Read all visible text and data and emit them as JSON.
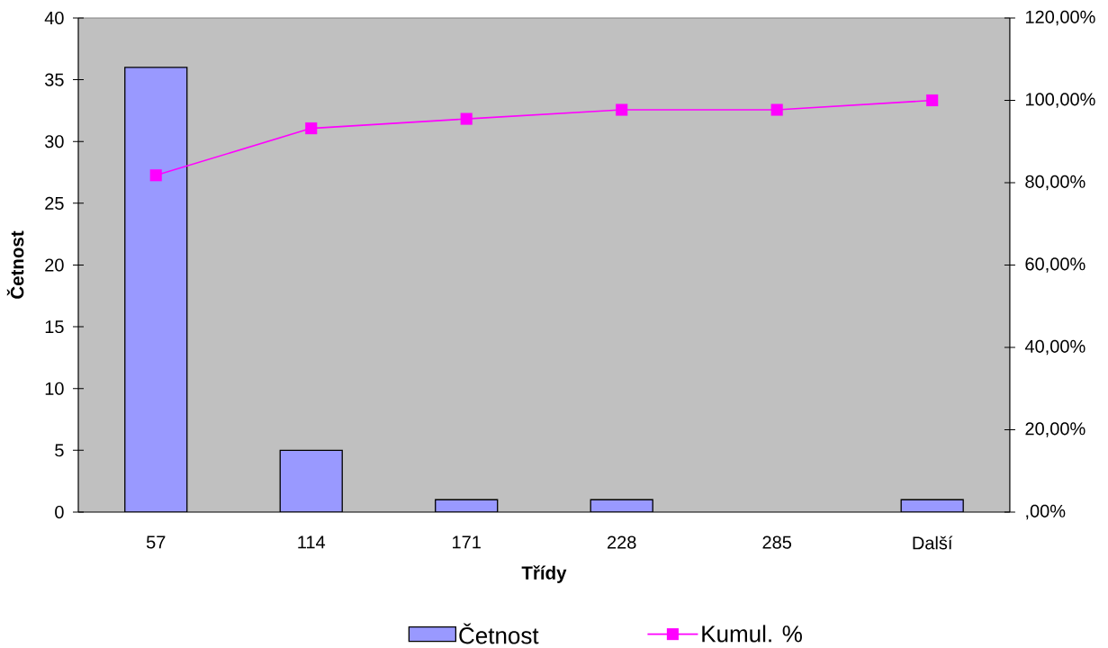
{
  "chart_data": {
    "type": "bar",
    "xlabel": "Třídy",
    "ylabel": "Četnost",
    "categories": [
      "57",
      "114",
      "171",
      "228",
      "285",
      "Další"
    ],
    "series": [
      {
        "name": "Četnost",
        "color": "#9999ff",
        "values": [
          36,
          5,
          1,
          1,
          0,
          1
        ]
      },
      {
        "name": "Kumul. %",
        "type": "line",
        "axis": "y2",
        "color": "#ff00ff",
        "marker": "square",
        "values": [
          81.8,
          93.2,
          95.5,
          97.7,
          97.7,
          100
        ]
      }
    ],
    "ylim": [
      0,
      40
    ],
    "yticks": [
      0,
      5,
      10,
      15,
      20,
      25,
      30,
      35,
      40
    ],
    "y2lim": [
      0,
      120
    ],
    "y2ticks": [
      {
        "value": 0,
        "label": ",00%"
      },
      {
        "value": 20,
        "label": "20,00%"
      },
      {
        "value": 40,
        "label": "40,00%"
      },
      {
        "value": 60,
        "label": "60,00%"
      },
      {
        "value": 80,
        "label": "80,00%"
      },
      {
        "value": 100,
        "label": "100,00%"
      },
      {
        "value": 120,
        "label": "120,00%"
      }
    ],
    "legend": "bottom"
  }
}
